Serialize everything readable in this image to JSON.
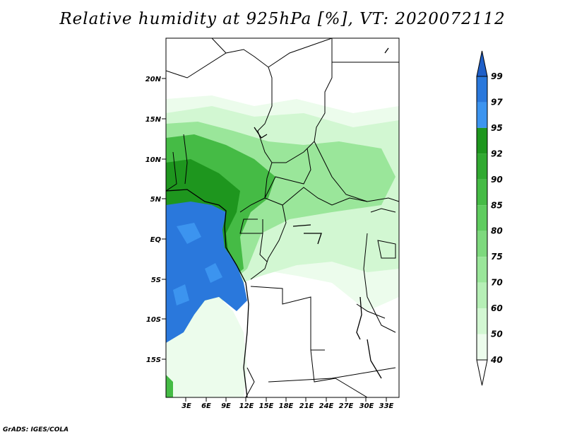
{
  "title": "Relative humidity at 925hPa [%], VT: 2020072112",
  "footer": "GrADS: IGES/COLA",
  "map": {
    "lat_labels": [
      "20N",
      "15N",
      "10N",
      "5N",
      "EQ",
      "5S",
      "10S",
      "15S"
    ],
    "lon_labels": [
      "3E",
      "6E",
      "9E",
      "12E",
      "15E",
      "18E",
      "21E",
      "24E",
      "27E",
      "30E",
      "33E"
    ]
  },
  "colorbar": {
    "labels": [
      "99",
      "97",
      "95",
      "92",
      "90",
      "85",
      "80",
      "75",
      "70",
      "60",
      "50",
      "40"
    ],
    "colors": [
      "#1f5fc8",
      "#2a78dc",
      "#3c94ef",
      "#1e961e",
      "#31a931",
      "#45bb45",
      "#5fcc5f",
      "#7ed97e",
      "#9ae69a",
      "#b6efb6",
      "#d2f7d2",
      "#ecfcec",
      "#ffffff"
    ]
  },
  "colors": {
    "deep_blue": "#2a78dc",
    "mid_blue": "#3c94ef",
    "dark_green": "#1e961e",
    "green": "#45bb45",
    "light_green": "#9ae69a",
    "pale_green": "#d2f7d2",
    "very_pale_green": "#ecfcec"
  }
}
